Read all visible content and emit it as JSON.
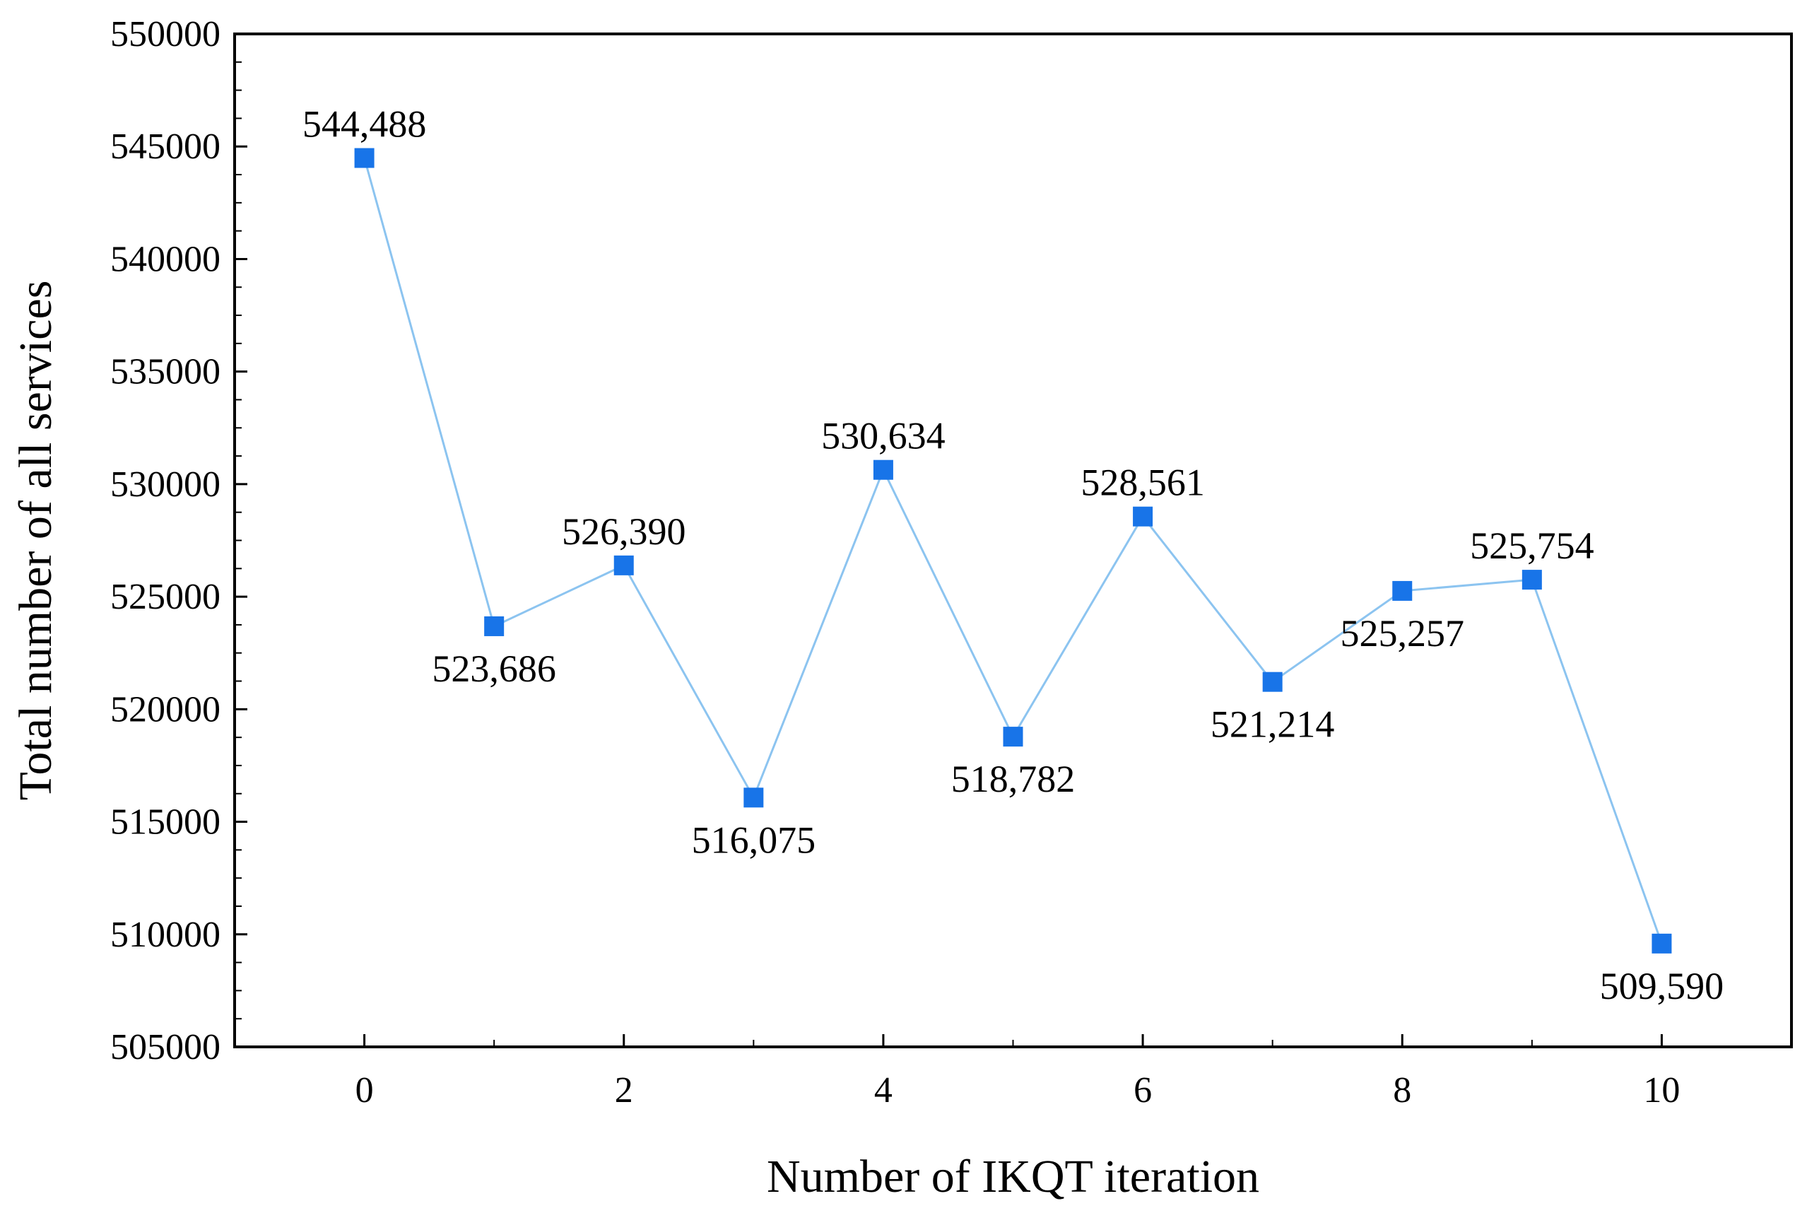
{
  "chart_data": {
    "type": "line",
    "title": "",
    "xlabel": "Number of IKQT iteration",
    "ylabel": "Total number of all services",
    "xlim": [
      -1,
      11
    ],
    "ylim": [
      505000,
      550000
    ],
    "x_ticks": [
      0,
      2,
      4,
      6,
      8,
      10
    ],
    "x_tick_labels": [
      "0",
      "2",
      "4",
      "6",
      "8",
      "10"
    ],
    "y_ticks": [
      505000,
      510000,
      515000,
      520000,
      525000,
      530000,
      535000,
      540000,
      545000,
      550000
    ],
    "y_tick_labels": [
      "505000",
      "510000",
      "515000",
      "520000",
      "525000",
      "530000",
      "535000",
      "540000",
      "545000",
      "550000"
    ],
    "grid": false,
    "series": [
      {
        "name": "Total number of all services",
        "color": "#1874e8",
        "line_color": "#8cc4f0",
        "marker": "square",
        "x": [
          0,
          1,
          2,
          3,
          4,
          5,
          6,
          7,
          8,
          9,
          10
        ],
        "values": [
          544488,
          523686,
          526390,
          516075,
          530634,
          518782,
          528561,
          521214,
          525257,
          525754,
          509590
        ],
        "labels": [
          "544,488",
          "523,686",
          "526,390",
          "516,075",
          "530,634",
          "518,782",
          "528,561",
          "521,214",
          "525,257",
          "525,754",
          "509,590"
        ],
        "label_positions": [
          "above",
          "below",
          "above",
          "below",
          "above",
          "below",
          "above",
          "below",
          "below",
          "above",
          "below"
        ]
      }
    ]
  }
}
